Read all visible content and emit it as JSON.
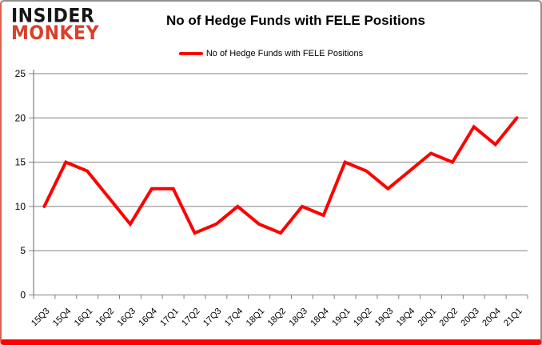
{
  "brand": {
    "line1": "INSIDER",
    "line2": "MONKEY",
    "color_line1": "#161616",
    "color_line2": "#d8402a"
  },
  "header": {
    "title": "No of Hedge Funds with FELE Positions"
  },
  "legend": {
    "label": "No of Hedge Funds with FELE Positions",
    "swatch_color": "#fe0000"
  },
  "chart_data": {
    "type": "line",
    "title": "No of Hedge Funds with FELE Positions",
    "categories": [
      "15Q3",
      "15Q4",
      "16Q1",
      "16Q2",
      "16Q3",
      "16Q4",
      "17Q1",
      "17Q2",
      "17Q3",
      "17Q4",
      "18Q1",
      "18Q2",
      "18Q3",
      "18Q4",
      "19Q1",
      "19Q2",
      "19Q3",
      "19Q4",
      "20Q1",
      "20Q2",
      "20Q3",
      "20Q4",
      "21Q1"
    ],
    "series": [
      {
        "name": "No of Hedge Funds with FELE Positions",
        "color": "#fe0000",
        "values": [
          10,
          15,
          14,
          11,
          8,
          12,
          12,
          7,
          8,
          10,
          8,
          7,
          10,
          9,
          15,
          14,
          12,
          14,
          16,
          15,
          19,
          17,
          20
        ]
      }
    ],
    "ylim": [
      0,
      25
    ],
    "yticks": [
      0,
      5,
      10,
      15,
      20,
      25
    ],
    "xlabel": "",
    "ylabel": "",
    "grid": "horizontal",
    "gridline_color": "#808080",
    "axis_color": "#808080",
    "tick_label_color": "#000000",
    "legend_position": "top"
  },
  "frame": {
    "bottom_bar_color": "#fe0000"
  }
}
